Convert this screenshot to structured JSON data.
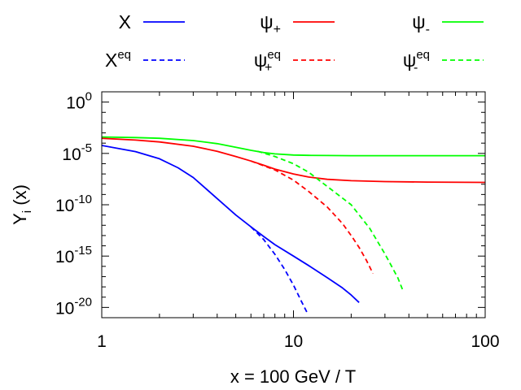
{
  "chart_data": {
    "type": "line",
    "xlabel": "x = 100 GeV / T",
    "ylabel": {
      "main": "Y",
      "sub": "i",
      "suffix": " (x)"
    },
    "x_scale": "log",
    "y_scale": "log",
    "xlim": [
      1,
      100
    ],
    "ylim": [
      1e-21,
      10.0
    ],
    "x_ticks": [
      {
        "value": 1,
        "label": "1"
      },
      {
        "value": 10,
        "label": "10"
      },
      {
        "value": 100,
        "label": "100"
      }
    ],
    "y_ticks": [
      {
        "value": 1,
        "base": "10",
        "exp": "0"
      },
      {
        "value": 1e-05,
        "base": "10",
        "exp": "-5"
      },
      {
        "value": 1e-10,
        "base": "10",
        "exp": "-10"
      },
      {
        "value": 1e-15,
        "base": "10",
        "exp": "-15"
      },
      {
        "value": 1e-20,
        "base": "10",
        "exp": "-20"
      }
    ],
    "grid": false,
    "legend_position": "top",
    "series": [
      {
        "name": "X",
        "label": {
          "main": "X"
        },
        "color": "#0000ff",
        "dash": "solid",
        "x": [
          1,
          1.5,
          2,
          2.5,
          3,
          4,
          5,
          6,
          7,
          8,
          10,
          12,
          15,
          18,
          20,
          22
        ],
        "y": [
          6e-05,
          1.5e-05,
          3e-06,
          4e-07,
          4.5e-08,
          4e-10,
          1e-11,
          7e-13,
          8e-14,
          1.3e-14,
          1e-15,
          1.2e-16,
          8e-18,
          8e-19,
          1.6e-19,
          3e-20
        ]
      },
      {
        "name": "Xeq",
        "label": {
          "main": "X",
          "sup": "eq"
        },
        "color": "#0000ff",
        "dash": "dashed",
        "x": [
          6,
          7,
          8,
          9,
          10,
          11,
          11.8
        ],
        "y": [
          7e-13,
          4e-14,
          1.5e-15,
          5e-17,
          1.5e-18,
          4e-20,
          3e-21
        ]
      },
      {
        "name": "ψ+",
        "label": {
          "main": "ψ",
          "sub": "+"
        },
        "color": "#ff0000",
        "dash": "solid",
        "x": [
          1,
          1.5,
          2,
          3,
          4,
          5,
          6,
          7,
          8,
          10,
          12,
          15,
          20,
          30,
          50,
          100
        ],
        "y": [
          0.0003,
          0.0002,
          0.00013,
          5e-05,
          1.6e-05,
          5e-06,
          1.8e-06,
          7e-07,
          3e-07,
          1e-07,
          5e-08,
          3e-08,
          2.2e-08,
          1.8e-08,
          1.6e-08,
          1.5e-08
        ]
      },
      {
        "name": "ψ+eq",
        "label": {
          "main": "ψ",
          "sub": "+",
          "sup": "eq"
        },
        "color": "#ff0000",
        "dash": "dashed",
        "x": [
          6,
          8,
          10,
          12,
          15,
          18,
          20,
          22,
          24,
          26
        ],
        "y": [
          1.8e-06,
          2.5e-07,
          2.5e-08,
          2e-09,
          6e-11,
          1.5e-12,
          1e-13,
          7e-15,
          4e-16,
          2e-17
        ]
      },
      {
        "name": "ψ-",
        "label": {
          "main": "ψ",
          "sub": "-"
        },
        "color": "#00ff00",
        "dash": "solid",
        "x": [
          1,
          1.5,
          2,
          3,
          4,
          5,
          6,
          7,
          8,
          10,
          12,
          15,
          20,
          30,
          50,
          100
        ],
        "y": [
          0.0004,
          0.00035,
          0.0003,
          0.00018,
          9e-05,
          4e-05,
          2e-05,
          1.2e-05,
          9e-06,
          7e-06,
          6.5e-06,
          6.2e-06,
          6e-06,
          6e-06,
          6e-06,
          6e-06
        ]
      },
      {
        "name": "ψ-eq",
        "label": {
          "main": "ψ",
          "sub": "-",
          "sup": "eq"
        },
        "color": "#00ff00",
        "dash": "dashed",
        "x": [
          6.5,
          8,
          10,
          12,
          15,
          20,
          25,
          30,
          35,
          37
        ],
        "y": [
          1.6e-05,
          5e-06,
          1e-06,
          1.5e-07,
          6e-09,
          1e-10,
          5e-13,
          1.6e-15,
          8e-18,
          6e-19
        ]
      }
    ]
  }
}
